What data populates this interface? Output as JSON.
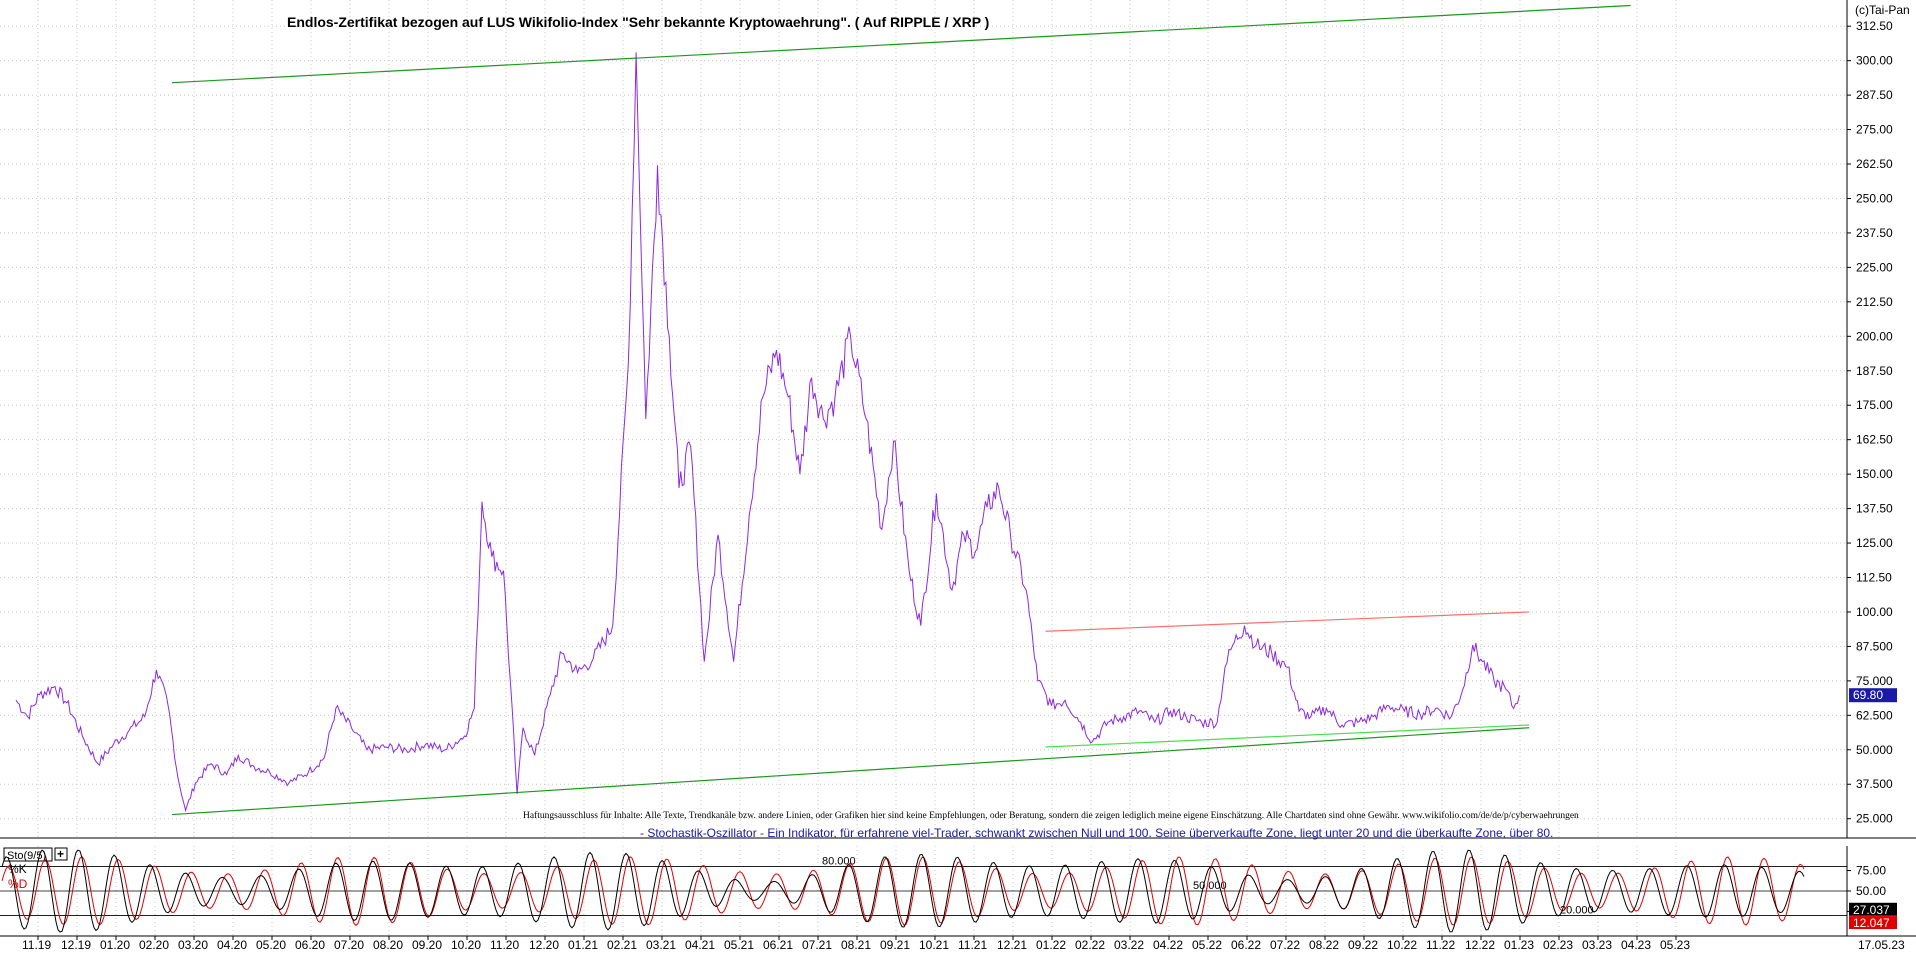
{
  "chart_data": {
    "type": "line",
    "title": "Endlos-Zertifikat bezogen auf LUS Wikifolio-Index \"Sehr bekannte Kryptowaehrung\". ( Auf RIPPLE / XRP )",
    "copyright": "(c)Tai-Pan",
    "disclaimer": "Haftungsausschluss für Inhalte: Alle Texte, Trendkanäle bzw. andere Linien, oder Grafiken hier sind keine Empfehlungen, oder Beratung, sondern die zeigen lediglich meine eigene Einschätzung. Alle Chartdaten sind ohne Gewähr.  www.wikifolio.com/de/de/p/cyberwaehrungen",
    "last_value_label": "69.80",
    "last_date_label": "17.05.23",
    "y_ticks": [
      "25.000",
      "37.500",
      "50.000",
      "62.500",
      "75.000",
      "87.500",
      "100.00",
      "112.50",
      "125.00",
      "137.50",
      "150.00",
      "162.50",
      "175.00",
      "187.50",
      "200.00",
      "212.50",
      "225.00",
      "237.50",
      "250.00",
      "262.50",
      "275.00",
      "287.50",
      "300.00",
      "312.50"
    ],
    "ylim": [
      18,
      322
    ],
    "x_ticks": [
      "11.19",
      "12.19",
      "01.20",
      "02.20",
      "03.20",
      "04.20",
      "05.20",
      "06.20",
      "07.20",
      "08.20",
      "09.20",
      "10.20",
      "11.20",
      "12.20",
      "01.21",
      "02.21",
      "03.21",
      "04.21",
      "05.21",
      "06.21",
      "07.21",
      "08.21",
      "09.21",
      "10.21",
      "11.21",
      "12.21",
      "01.22",
      "02.22",
      "03.22",
      "04.22",
      "05.22",
      "06.22",
      "07.22",
      "08.22",
      "09.22",
      "10.22",
      "11.22",
      "12.22",
      "01.23",
      "02.23",
      "03.23",
      "04.23",
      "05.23"
    ],
    "series": [
      {
        "color": "#8a2be2",
        "points": [
          [
            0,
            68
          ],
          [
            0.3,
            62
          ],
          [
            0.6,
            70
          ],
          [
            1.0,
            73
          ],
          [
            1.3,
            67
          ],
          [
            1.7,
            55
          ],
          [
            2.1,
            45
          ],
          [
            2.5,
            52
          ],
          [
            2.9,
            57
          ],
          [
            3.3,
            62
          ],
          [
            3.6,
            79
          ],
          [
            3.9,
            66
          ],
          [
            4.15,
            40
          ],
          [
            4.35,
            28
          ],
          [
            4.6,
            38
          ],
          [
            5.0,
            45
          ],
          [
            5.4,
            41
          ],
          [
            5.7,
            48
          ],
          [
            6.1,
            44
          ],
          [
            6.5,
            42
          ],
          [
            7.0,
            38
          ],
          [
            7.5,
            42
          ],
          [
            7.9,
            47
          ],
          [
            8.2,
            65
          ],
          [
            8.6,
            58
          ],
          [
            9.0,
            50
          ],
          [
            9.5,
            51
          ],
          [
            10.0,
            50
          ],
          [
            10.5,
            52
          ],
          [
            11.0,
            50
          ],
          [
            11.5,
            55
          ],
          [
            11.75,
            65
          ],
          [
            11.95,
            140
          ],
          [
            12.2,
            120
          ],
          [
            12.5,
            115
          ],
          [
            12.85,
            34
          ],
          [
            13.0,
            58
          ],
          [
            13.3,
            48
          ],
          [
            13.7,
            70
          ],
          [
            14.0,
            85
          ],
          [
            14.4,
            78
          ],
          [
            14.8,
            83
          ],
          [
            15.3,
            95
          ],
          [
            15.7,
            190
          ],
          [
            15.9,
            303
          ],
          [
            16.15,
            170
          ],
          [
            16.45,
            262
          ],
          [
            16.75,
            200
          ],
          [
            17.0,
            145
          ],
          [
            17.3,
            160
          ],
          [
            17.65,
            82
          ],
          [
            18.0,
            128
          ],
          [
            18.4,
            82
          ],
          [
            18.8,
            135
          ],
          [
            19.15,
            178
          ],
          [
            19.5,
            195
          ],
          [
            19.8,
            178
          ],
          [
            20.1,
            150
          ],
          [
            20.4,
            185
          ],
          [
            20.7,
            170
          ],
          [
            21.0,
            178
          ],
          [
            21.4,
            200
          ],
          [
            21.8,
            170
          ],
          [
            22.2,
            130
          ],
          [
            22.5,
            162
          ],
          [
            22.9,
            115
          ],
          [
            23.2,
            95
          ],
          [
            23.6,
            143
          ],
          [
            24.0,
            108
          ],
          [
            24.3,
            128
          ],
          [
            24.6,
            122
          ],
          [
            24.9,
            138
          ],
          [
            25.2,
            145
          ],
          [
            25.5,
            128
          ],
          [
            25.9,
            108
          ],
          [
            26.2,
            75
          ],
          [
            26.55,
            66
          ],
          [
            26.9,
            68
          ],
          [
            27.3,
            60
          ],
          [
            27.6,
            53
          ],
          [
            28.0,
            60
          ],
          [
            28.4,
            62
          ],
          [
            28.8,
            64
          ],
          [
            29.2,
            60
          ],
          [
            29.6,
            64
          ],
          [
            30.0,
            62
          ],
          [
            30.4,
            60
          ],
          [
            30.8,
            60
          ],
          [
            31.0,
            80
          ],
          [
            31.2,
            88
          ],
          [
            31.5,
            95
          ],
          [
            31.8,
            88
          ],
          [
            32.2,
            85
          ],
          [
            32.6,
            80
          ],
          [
            32.9,
            64
          ],
          [
            33.2,
            62
          ],
          [
            33.6,
            65
          ],
          [
            34.0,
            59
          ],
          [
            34.4,
            60
          ],
          [
            34.8,
            62
          ],
          [
            35.2,
            66
          ],
          [
            35.6,
            64
          ],
          [
            36.0,
            63
          ],
          [
            36.4,
            65
          ],
          [
            36.8,
            62
          ],
          [
            37.1,
            72
          ],
          [
            37.35,
            88
          ],
          [
            37.6,
            82
          ],
          [
            37.9,
            75
          ],
          [
            38.2,
            72
          ],
          [
            38.4,
            65
          ],
          [
            38.55,
            69.8
          ]
        ]
      }
    ],
    "trendlines": [
      {
        "color": "#1a9a1a",
        "points": [
          [
            4.0,
            292
          ],
          [
            41.4,
            320
          ]
        ]
      },
      {
        "color": "#1a9a1a",
        "points": [
          [
            4.0,
            26.5
          ],
          [
            38.8,
            58
          ]
        ]
      },
      {
        "color": "#ff6f6f",
        "points": [
          [
            26.4,
            93
          ],
          [
            38.8,
            100
          ]
        ]
      },
      {
        "color": "#4dde4d",
        "points": [
          [
            26.4,
            51
          ],
          [
            38.8,
            59
          ]
        ]
      }
    ],
    "oscillator": {
      "title": "- Stochastik-Oszillator - Ein Indikator, für erfahrene viel-Trader, schwankt zwischen Null und 100. Seine überverkaufte Zone, liegt unter 20 und die überkaufte Zone, über 80.",
      "panel_label": "Sto(9/5)",
      "k_label": "%K",
      "d_label": "%D",
      "levels": [
        20,
        50,
        80
      ],
      "level_labels": [
        "20.000",
        "50.000",
        "80.000"
      ],
      "right_ticks": [
        "75.00",
        "50.00",
        "25.00"
      ],
      "last_k_label": "27.037",
      "last_d_label": "12.047",
      "ylim": [
        -5,
        105
      ],
      "k_color": "#000000",
      "d_color": "#e00000"
    }
  }
}
